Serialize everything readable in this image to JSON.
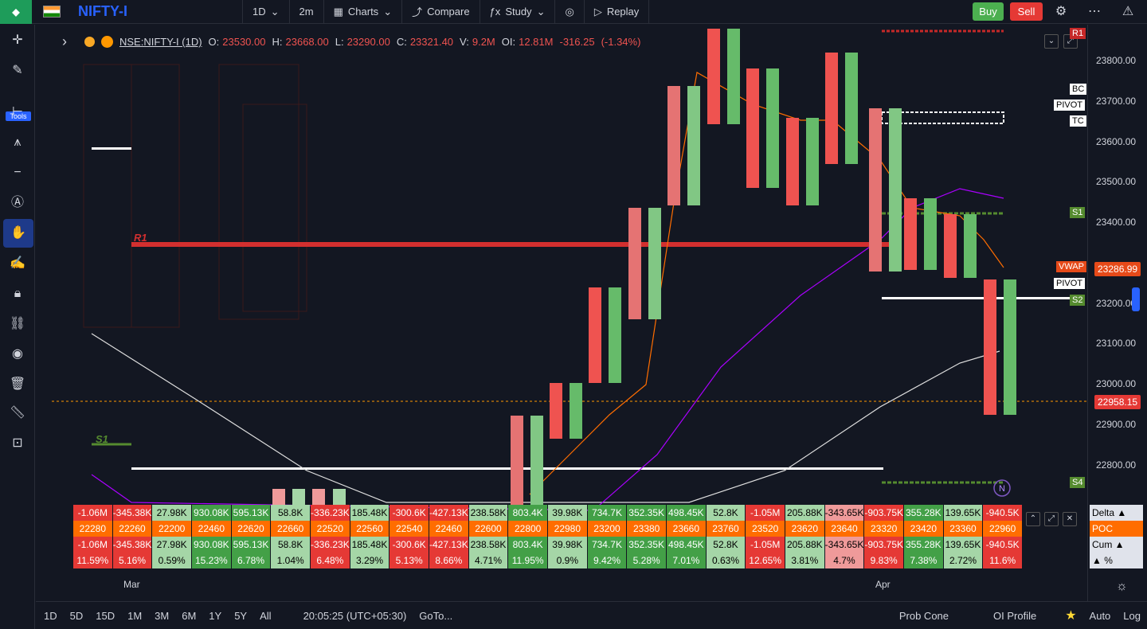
{
  "app": {
    "logo_text": "",
    "symbol_short": "NIFTY-I"
  },
  "toolbar": {
    "interval": "1D",
    "interval2": "2m",
    "charts": "Charts",
    "compare": "Compare",
    "study": "Study",
    "replay": "Replay",
    "buy": "Buy",
    "sell": "Sell"
  },
  "legend": {
    "symbol": "NSE:NIFTY-I (1D)",
    "o_label": "O:",
    "o": "23530.00",
    "h_label": "H:",
    "h": "23668.00",
    "l_label": "L:",
    "l": "23290.00",
    "c_label": "C:",
    "c": "23321.40",
    "v_label": "V:",
    "v": "9.2M",
    "oi_label": "OI:",
    "oi": "12.81M",
    "change": "-316.25",
    "change_pct": "(-1.34%)"
  },
  "chart_labels": {
    "r1": "R1",
    "bc": "BC",
    "pivot": "PIVOT",
    "tc": "TC",
    "s1": "S1",
    "vwap": "VWAP",
    "pivot2": "PIVOT",
    "s2": "S2",
    "s4": "S4",
    "n": "N",
    "s1_left": "S1",
    "r1_left": "R1"
  },
  "price_axis": {
    "ticks": [
      "23800.00",
      "23700.00",
      "23600.00",
      "23500.00",
      "23400.00",
      "23300.00",
      "23200.00",
      "23100.00",
      "23000.00",
      "22900.00",
      "22800.00"
    ],
    "vwap_price": "23286.99",
    "last_price": "22958.15"
  },
  "time_axis": {
    "mar": "Mar",
    "apr": "Apr"
  },
  "delta_table": {
    "delta": [
      "-1.06M",
      "-345.38K",
      "27.98K",
      "930.08K",
      "595.13K",
      "58.8K",
      "-336.23K",
      "185.48K",
      "-300.6K",
      "-427.13K",
      "238.58K",
      "803.4K",
      "39.98K",
      "734.7K",
      "352.35K",
      "498.45K",
      "52.8K",
      "-1.05M",
      "205.88K",
      "-343.65K",
      "-903.75K",
      "355.28K",
      "139.65K",
      "-940.5K"
    ],
    "poc": [
      "22280",
      "22260",
      "22200",
      "22460",
      "22620",
      "22660",
      "22520",
      "22560",
      "22540",
      "22460",
      "22600",
      "22800",
      "22980",
      "23200",
      "23380",
      "23660",
      "23760",
      "23520",
      "23620",
      "23640",
      "23320",
      "23420",
      "23360",
      "22960"
    ],
    "cum": [
      "-1.06M",
      "-345.38K",
      "27.98K",
      "930.08K",
      "595.13K",
      "58.8K",
      "-336.23K",
      "185.48K",
      "-300.6K",
      "-427.13K",
      "238.58K",
      "803.4K",
      "39.98K",
      "734.7K",
      "352.35K",
      "498.45K",
      "52.8K",
      "-1.05M",
      "205.88K",
      "-343.65K",
      "-903.75K",
      "355.28K",
      "139.65K",
      "-940.5K"
    ],
    "pct": [
      "11.59%",
      "5.16%",
      "0.59%",
      "15.23%",
      "6.78%",
      "1.04%",
      "6.48%",
      "3.29%",
      "5.13%",
      "8.66%",
      "4.71%",
      "11.95%",
      "0.9%",
      "9.42%",
      "5.28%",
      "7.01%",
      "0.63%",
      "12.65%",
      "3.81%",
      "4.7%",
      "9.83%",
      "7.38%",
      "2.72%",
      "11.6%"
    ],
    "legend": [
      "Delta ▲",
      "POC",
      "Cum ▲",
      "▲ %"
    ]
  },
  "footer": {
    "ranges": [
      "1D",
      "5D",
      "15D",
      "1M",
      "3M",
      "6M",
      "1Y",
      "5Y",
      "All"
    ],
    "time": "20:05:25 (UTC+05:30)",
    "goto": "GoTo...",
    "prob_cone": "Prob Cone",
    "oi_profile": "OI Profile",
    "auto": "Auto",
    "log": "Log"
  },
  "left_toolbar": {
    "tools_label": "Tools"
  },
  "colors": {
    "green": "#4caf50",
    "red": "#ef5350",
    "orange": "#ff9800",
    "blue": "#2962ff"
  }
}
